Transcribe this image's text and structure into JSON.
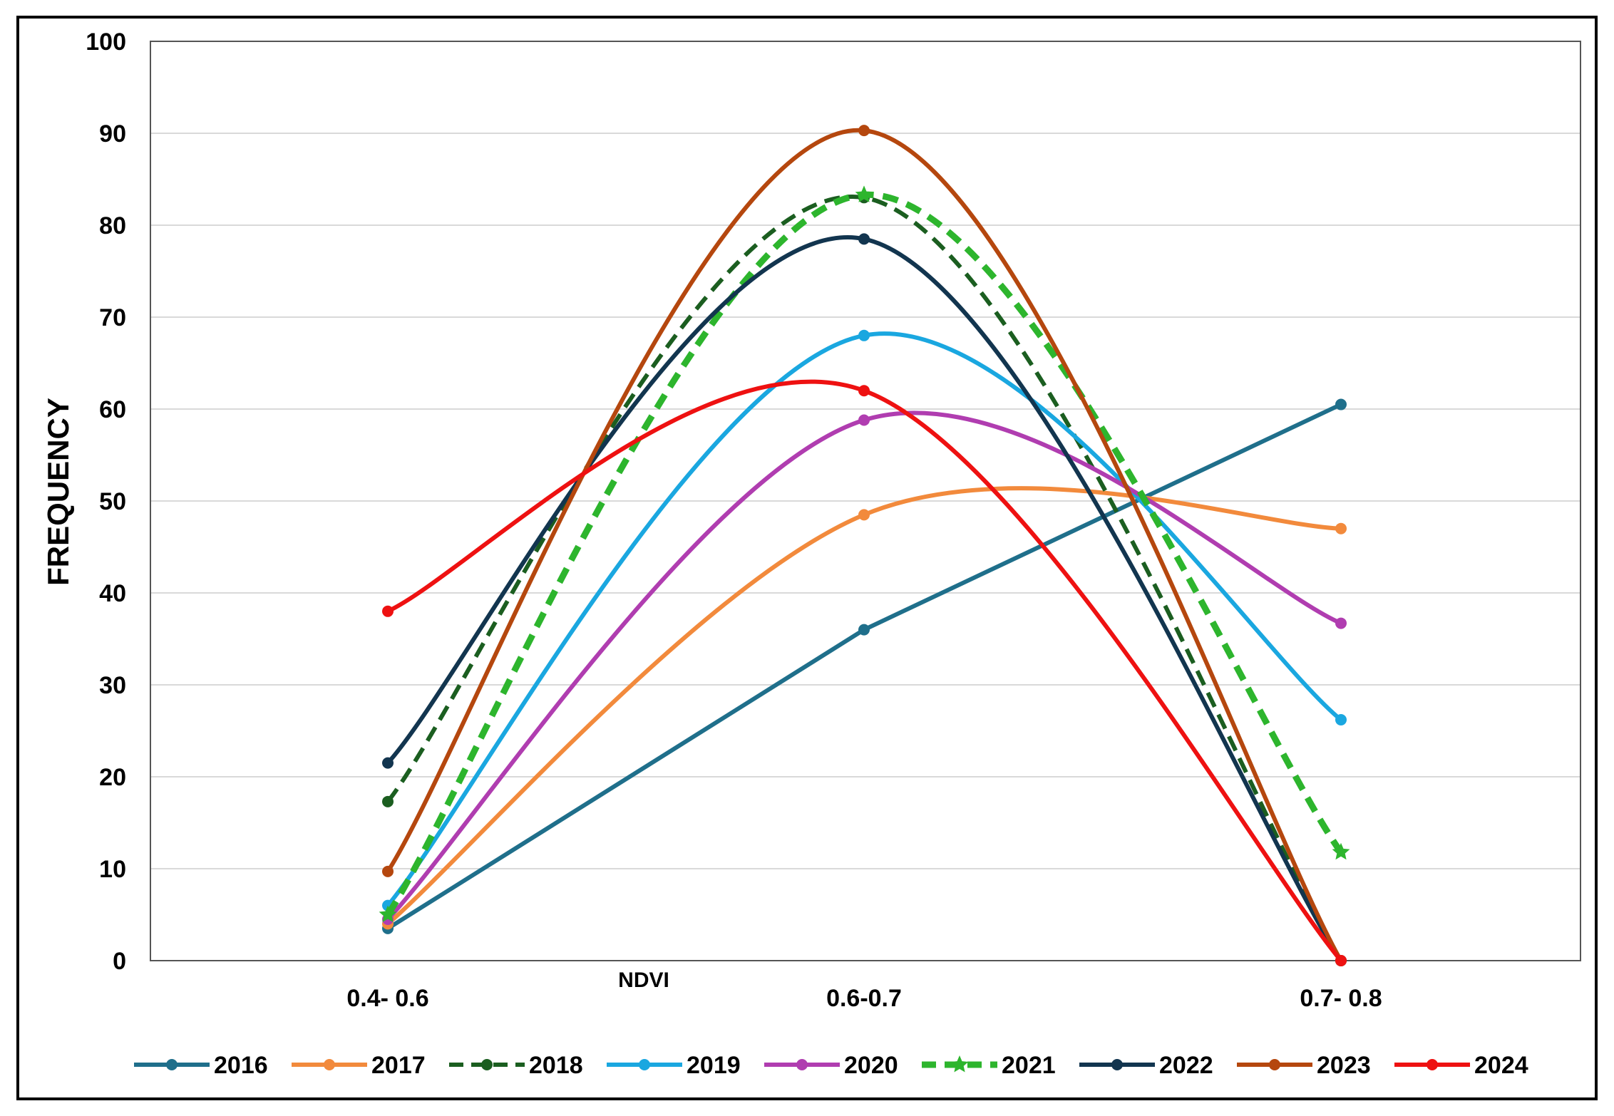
{
  "chart_data": {
    "type": "line",
    "title": "",
    "xlabel": "NDVI",
    "ylabel": "FREQUENCY",
    "ylim": [
      0,
      100
    ],
    "yticks": [
      0,
      10,
      20,
      30,
      40,
      50,
      60,
      70,
      80,
      90,
      100
    ],
    "grid": true,
    "legend_position": "bottom",
    "categories": [
      "0.4- 0.6",
      "0.6-0.7",
      "0.7- 0.8"
    ],
    "series": [
      {
        "name": "2016",
        "values": [
          3.5,
          36,
          60.5
        ],
        "color": "#1f6f8b",
        "style": "solid",
        "marker": "circle",
        "smooth": false
      },
      {
        "name": "2017",
        "values": [
          4,
          48.5,
          47
        ],
        "color": "#f28a3c",
        "style": "solid",
        "marker": "circle",
        "smooth": true
      },
      {
        "name": "2018",
        "values": [
          17.3,
          83,
          0
        ],
        "color": "#1b5e20",
        "style": "dashed",
        "marker": "circle",
        "smooth": true
      },
      {
        "name": "2019",
        "values": [
          6,
          68,
          26.2
        ],
        "color": "#1aa7e0",
        "style": "solid",
        "marker": "circle",
        "smooth": true
      },
      {
        "name": "2020",
        "values": [
          4.5,
          58.8,
          36.7
        ],
        "color": "#b03db0",
        "style": "solid",
        "marker": "circle",
        "smooth": true
      },
      {
        "name": "2021",
        "values": [
          5,
          83.3,
          11.8
        ],
        "color": "#2db52d",
        "style": "dashed-bold",
        "marker": "star",
        "smooth": true
      },
      {
        "name": "2022",
        "values": [
          21.5,
          78.5,
          0
        ],
        "color": "#12354f",
        "style": "solid",
        "marker": "circle",
        "smooth": true
      },
      {
        "name": "2023",
        "values": [
          9.7,
          90.3,
          0
        ],
        "color": "#b5470e",
        "style": "solid",
        "marker": "circle",
        "smooth": true
      },
      {
        "name": "2024",
        "values": [
          38,
          62,
          0
        ],
        "color": "#ee1111",
        "style": "solid",
        "marker": "circle",
        "smooth": true
      }
    ]
  }
}
